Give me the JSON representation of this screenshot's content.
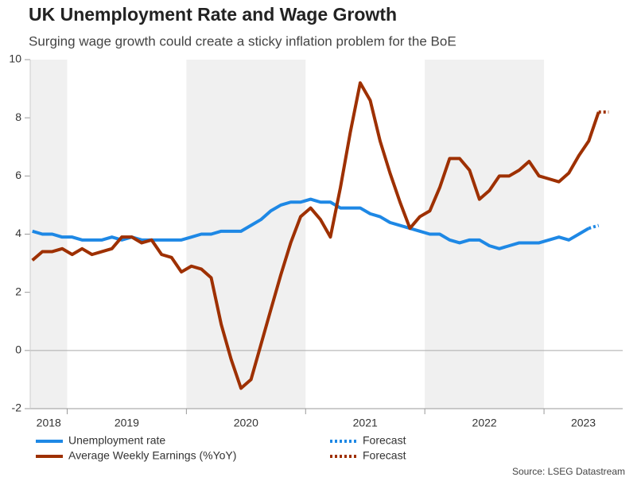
{
  "chart_data": {
    "type": "line",
    "title": "UK Unemployment Rate and Wage Growth",
    "subtitle": "Surging wage growth could create a sticky inflation problem for the BoE",
    "source": "Source: LSEG Datastream",
    "x": [
      2018.708,
      2018.792,
      2018.875,
      2018.958,
      2019.042,
      2019.125,
      2019.208,
      2019.292,
      2019.375,
      2019.458,
      2019.542,
      2019.625,
      2019.708,
      2019.792,
      2019.875,
      2019.958,
      2020.042,
      2020.125,
      2020.208,
      2020.292,
      2020.375,
      2020.458,
      2020.542,
      2020.625,
      2020.708,
      2020.792,
      2020.875,
      2020.958,
      2021.042,
      2021.125,
      2021.208,
      2021.292,
      2021.375,
      2021.458,
      2021.542,
      2021.625,
      2021.708,
      2021.792,
      2021.875,
      2021.958,
      2022.042,
      2022.125,
      2022.208,
      2022.292,
      2022.375,
      2022.458,
      2022.542,
      2022.625,
      2022.708,
      2022.792,
      2022.875,
      2022.958,
      2023.042,
      2023.125,
      2023.208,
      2023.292,
      2023.375,
      2023.458,
      2023.542
    ],
    "series": [
      {
        "name": "Unemployment rate",
        "color": "#1e88e5",
        "dash": false,
        "values": [
          4.1,
          4.0,
          4.0,
          3.9,
          3.9,
          3.8,
          3.8,
          3.8,
          3.9,
          3.8,
          3.9,
          3.8,
          3.8,
          3.8,
          3.8,
          3.8,
          3.9,
          4.0,
          4.0,
          4.1,
          4.1,
          4.1,
          4.3,
          4.5,
          4.8,
          5.0,
          5.1,
          5.1,
          5.2,
          5.1,
          5.1,
          4.9,
          4.9,
          4.9,
          4.7,
          4.6,
          4.4,
          4.3,
          4.2,
          4.1,
          4.0,
          4.0,
          3.8,
          3.7,
          3.8,
          3.8,
          3.6,
          3.5,
          3.6,
          3.7,
          3.7,
          3.7,
          3.8,
          3.9,
          3.8,
          4.0,
          4.2,
          null,
          null
        ]
      },
      {
        "name": "Average Weekly Earnings (%YoY)",
        "color": "#9e3000",
        "dash": false,
        "values": [
          3.1,
          3.4,
          3.4,
          3.5,
          3.3,
          3.5,
          3.3,
          3.4,
          3.5,
          3.9,
          3.9,
          3.7,
          3.8,
          3.3,
          3.2,
          2.7,
          2.9,
          2.8,
          2.5,
          0.9,
          -0.3,
          -1.3,
          -1.0,
          0.2,
          1.4,
          2.6,
          3.7,
          4.6,
          4.9,
          4.5,
          3.9,
          5.6,
          7.5,
          9.2,
          8.6,
          7.2,
          6.1,
          5.1,
          4.2,
          4.6,
          4.8,
          5.6,
          6.6,
          6.6,
          6.2,
          5.2,
          5.5,
          6.0,
          6.0,
          6.2,
          6.5,
          6.0,
          5.9,
          5.8,
          6.1,
          6.7,
          7.2,
          8.2,
          null
        ]
      },
      {
        "name": "Forecast",
        "color": "#1e88e5",
        "dash": true,
        "values": [
          null,
          null,
          null,
          null,
          null,
          null,
          null,
          null,
          null,
          null,
          null,
          null,
          null,
          null,
          null,
          null,
          null,
          null,
          null,
          null,
          null,
          null,
          null,
          null,
          null,
          null,
          null,
          null,
          null,
          null,
          null,
          null,
          null,
          null,
          null,
          null,
          null,
          null,
          null,
          null,
          null,
          null,
          null,
          null,
          null,
          null,
          null,
          null,
          null,
          null,
          null,
          null,
          null,
          null,
          null,
          null,
          4.2,
          4.3,
          null
        ]
      },
      {
        "name": "Forecast",
        "color": "#9e3000",
        "dash": true,
        "values": [
          null,
          null,
          null,
          null,
          null,
          null,
          null,
          null,
          null,
          null,
          null,
          null,
          null,
          null,
          null,
          null,
          null,
          null,
          null,
          null,
          null,
          null,
          null,
          null,
          null,
          null,
          null,
          null,
          null,
          null,
          null,
          null,
          null,
          null,
          null,
          null,
          null,
          null,
          null,
          null,
          null,
          null,
          null,
          null,
          null,
          null,
          null,
          null,
          null,
          null,
          null,
          null,
          null,
          null,
          null,
          null,
          null,
          8.2,
          8.2
        ]
      }
    ],
    "xlim": [
      2018.69,
      2023.66
    ],
    "xticks": [
      {
        "value": 2018,
        "label": "2018"
      },
      {
        "value": 2019,
        "label": "2019"
      },
      {
        "value": 2020,
        "label": "2020"
      },
      {
        "value": 2021,
        "label": "2021"
      },
      {
        "value": 2022,
        "label": "2022"
      },
      {
        "value": 2023,
        "label": "2023"
      }
    ],
    "ylim": [
      -2,
      10
    ],
    "yticks": [
      -2,
      0,
      2,
      4,
      6,
      8,
      10
    ],
    "zero_line": true,
    "shaded_years": [
      2018,
      2020,
      2022
    ],
    "shade_color": "#f0f0f0"
  }
}
